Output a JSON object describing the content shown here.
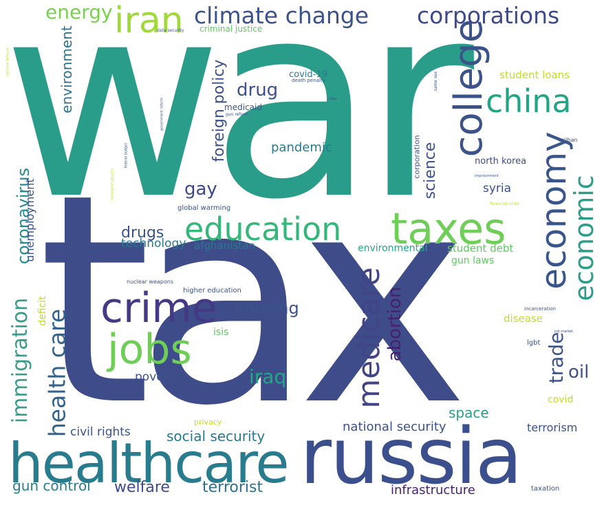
{
  "words": [
    {
      "text": "war",
      "color": "#2a9d8a",
      "orient": "h"
    },
    {
      "text": "tax",
      "color": "#3e4c8a",
      "orient": "h"
    },
    {
      "text": "russia",
      "color": "#3b4f8c",
      "orient": "h"
    },
    {
      "text": "healthcare",
      "color": "#287c8e",
      "orient": "h"
    },
    {
      "text": "college",
      "color": "#3b528b",
      "orient": "v"
    },
    {
      "text": "education",
      "color": "#35b779",
      "orient": "h"
    },
    {
      "text": "taxes",
      "color": "#6ece58",
      "orient": "h"
    },
    {
      "text": "economy",
      "color": "#39568c",
      "orient": "v"
    },
    {
      "text": "economic",
      "color": "#2a9d8a",
      "orient": "v"
    },
    {
      "text": "china",
      "color": "#21a585",
      "orient": "h"
    },
    {
      "text": "iran",
      "color": "#a0da39",
      "orient": "h"
    },
    {
      "text": "climate change",
      "color": "#3b528b",
      "orient": "h"
    },
    {
      "text": "corporations",
      "color": "#3e4a89",
      "orient": "h"
    },
    {
      "text": "energy",
      "color": "#7ad151",
      "orient": "h"
    },
    {
      "text": "crime",
      "color": "#443983",
      "orient": "h"
    },
    {
      "text": "jobs",
      "color": "#6ece58",
      "orient": "h"
    },
    {
      "text": "medicare",
      "color": "#414487",
      "orient": "v"
    },
    {
      "text": "health care",
      "color": "#33638d",
      "orient": "v"
    },
    {
      "text": "immigration",
      "color": "#3b9a8a",
      "orient": "v"
    },
    {
      "text": "coronavirus",
      "color": "#228b8d",
      "orient": "v"
    },
    {
      "text": "abortion",
      "color": "#481f70",
      "orient": "v"
    },
    {
      "text": "foreign policy",
      "color": "#3b528b",
      "orient": "v"
    },
    {
      "text": "environment",
      "color": "#2c728e",
      "orient": "v"
    },
    {
      "text": "drug",
      "color": "#3b528b",
      "orient": "h"
    },
    {
      "text": "gay",
      "color": "#3e4989",
      "orient": "h"
    },
    {
      "text": "drugs",
      "color": "#3b528b",
      "orient": "h"
    },
    {
      "text": "housing",
      "color": "#3b528b",
      "orient": "h"
    },
    {
      "text": "iraq",
      "color": "#22a884",
      "orient": "h"
    },
    {
      "text": "science",
      "color": "#3b528b",
      "orient": "v"
    },
    {
      "text": "trade",
      "color": "#3b528b",
      "orient": "v"
    },
    {
      "text": "oil",
      "color": "#3b528b",
      "orient": "h"
    },
    {
      "text": "pandemic",
      "color": "#287c8e",
      "orient": "h"
    },
    {
      "text": "unemployment",
      "color": "#3b528b",
      "orient": "v"
    },
    {
      "text": "technology",
      "color": "#2a788e",
      "orient": "h"
    },
    {
      "text": "afghanistan",
      "color": "#2a788e",
      "orient": "h"
    },
    {
      "text": "poverty",
      "color": "#3b528b",
      "orient": "h"
    },
    {
      "text": "civil rights",
      "color": "#3b528b",
      "orient": "h"
    },
    {
      "text": "social security",
      "color": "#2a788e",
      "orient": "h"
    },
    {
      "text": "national security",
      "color": "#3b528b",
      "orient": "h"
    },
    {
      "text": "space",
      "color": "#2a9d8a",
      "orient": "h"
    },
    {
      "text": "terrorism",
      "color": "#3b528b",
      "orient": "h"
    },
    {
      "text": "gun control",
      "color": "#287c8e",
      "orient": "h"
    },
    {
      "text": "welfare",
      "color": "#3e4a89",
      "orient": "h"
    },
    {
      "text": "terrorist",
      "color": "#2d708e",
      "orient": "h"
    },
    {
      "text": "infrastructure",
      "color": "#481f70",
      "orient": "h"
    },
    {
      "text": "student loans",
      "color": "#c2df23",
      "orient": "h"
    },
    {
      "text": "north korea",
      "color": "#3e4a89",
      "orient": "h"
    },
    {
      "text": "syria",
      "color": "#3b528b",
      "orient": "h"
    },
    {
      "text": "environmental",
      "color": "#22a884",
      "orient": "h"
    },
    {
      "text": "student debt",
      "color": "#5ec962",
      "orient": "h"
    },
    {
      "text": "gun laws",
      "color": "#5ec962",
      "orient": "h"
    },
    {
      "text": "disease",
      "color": "#c2df23",
      "orient": "h"
    },
    {
      "text": "isis",
      "color": "#5ec962",
      "orient": "h"
    },
    {
      "text": "deficit",
      "color": "#bddf26",
      "orient": "v"
    },
    {
      "text": "covid",
      "color": "#c2df23",
      "orient": "h"
    },
    {
      "text": "covid-19",
      "color": "#2a788e",
      "orient": "h"
    },
    {
      "text": "medicaid",
      "color": "#3b528b",
      "orient": "h"
    },
    {
      "text": "criminal justice",
      "color": "#5ec962",
      "orient": "h"
    },
    {
      "text": "corporation",
      "color": "#3b528b",
      "orient": "v"
    },
    {
      "text": "global warming",
      "color": "#3b528b",
      "orient": "h"
    },
    {
      "text": "higher education",
      "color": "#3b528b",
      "orient": "h"
    },
    {
      "text": "nuclear weapons",
      "color": "#3b528b",
      "orient": "h"
    },
    {
      "text": "privacy",
      "color": "#c2df23",
      "orient": "h"
    },
    {
      "text": "lgbt",
      "color": "#3b528b",
      "orient": "h"
    },
    {
      "text": "taxation",
      "color": "#3b528b",
      "orient": "h"
    },
    {
      "text": "taliban",
      "color": "#3b528b",
      "orient": "h"
    },
    {
      "text": "incarceration",
      "color": "#3b528b",
      "orient": "h"
    },
    {
      "text": "death penalty",
      "color": "#3b528b",
      "orient": "h"
    },
    {
      "text": "gun reform",
      "color": "#3b528b",
      "orient": "h"
    },
    {
      "text": "data security",
      "color": "#3b528b",
      "orient": "h"
    },
    {
      "text": "same sex",
      "color": "#3b528b",
      "orient": "v"
    },
    {
      "text": "federal budget",
      "color": "#3b528b",
      "orient": "v"
    },
    {
      "text": "government reform",
      "color": "#3b528b",
      "orient": "v"
    },
    {
      "text": "national defense",
      "color": "#c2df23",
      "orient": "v"
    },
    {
      "text": "homeland security",
      "color": "#c2df23",
      "orient": "v"
    },
    {
      "text": "financial crisis",
      "color": "#c2df23",
      "orient": "h"
    },
    {
      "text": "imprisonment",
      "color": "#3b528b",
      "orient": "h"
    },
    {
      "text": "sites",
      "color": "#3b528b",
      "orient": "h"
    },
    {
      "text": "job market",
      "color": "#3b528b",
      "orient": "h"
    }
  ]
}
